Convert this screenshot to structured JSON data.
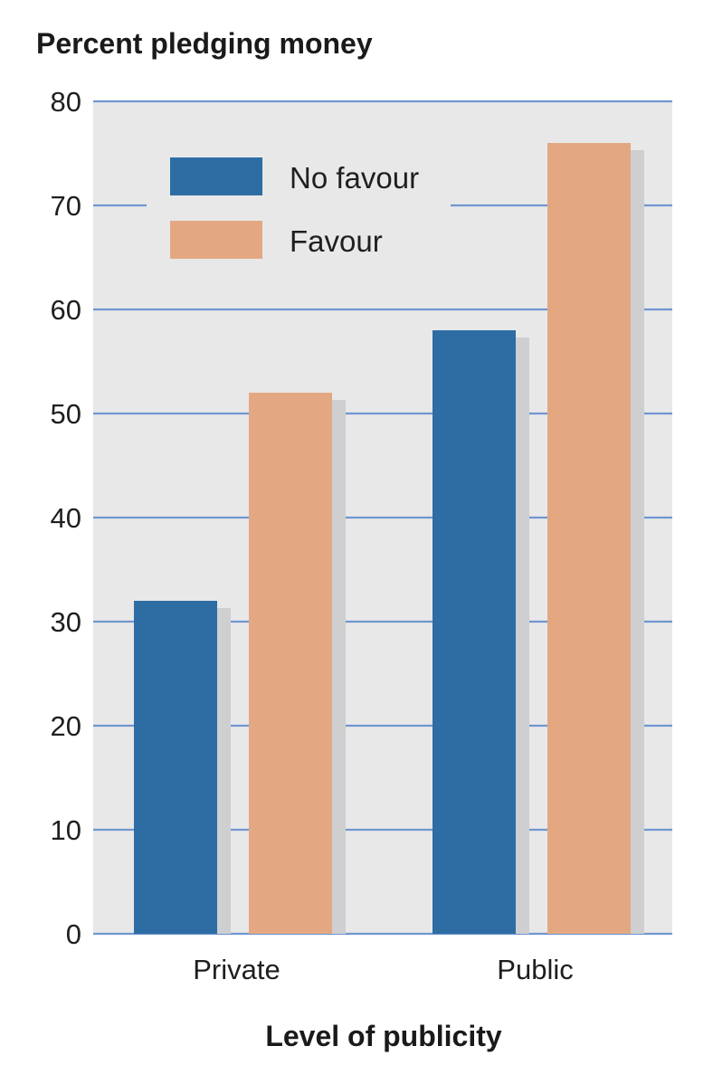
{
  "chart_data": {
    "type": "bar",
    "ylabel": "Percent pledging money",
    "xlabel": "Level of publicity",
    "categories": [
      "Private",
      "Public"
    ],
    "series": [
      {
        "name": "No favour",
        "values": [
          32,
          58
        ]
      },
      {
        "name": "Favour",
        "values": [
          52,
          76
        ]
      }
    ],
    "ylim": [
      0,
      80
    ],
    "yticks": [
      "0",
      "10",
      "20",
      "30",
      "40",
      "50",
      "60",
      "70",
      "80"
    ],
    "grid": true,
    "legend_position": "top-left",
    "colors": {
      "series": [
        "#2e6da4",
        "#e3a882"
      ],
      "shadow": "#cfcfd1",
      "plot_background": "#e8e8e9",
      "grid": "#7096d0"
    }
  }
}
